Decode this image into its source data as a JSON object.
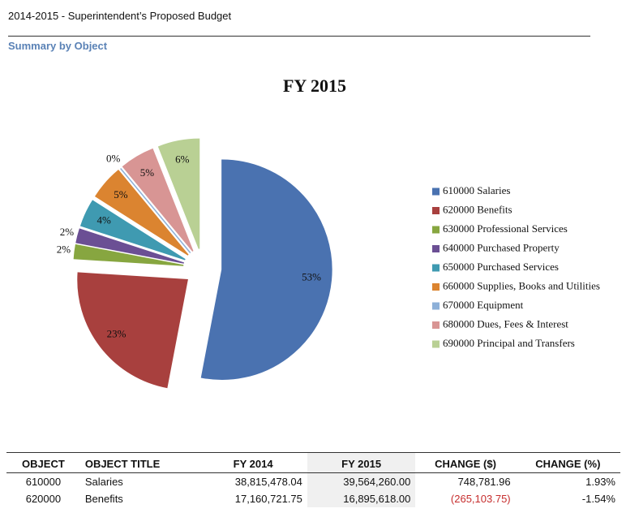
{
  "header": {
    "title": "2014-2015 - Superintendent’s Proposed Budget",
    "subtitle": "Summary by Object"
  },
  "chart_data": {
    "type": "pie",
    "title": "FY 2015",
    "categories": [
      "610000 Salaries",
      "620000 Benefits",
      "630000 Professional Services",
      "640000 Purchased Property",
      "650000 Purchased Services",
      "660000 Supplies, Books and Utilities",
      "670000 Equipment",
      "680000 Dues, Fees & Interest",
      "690000 Principal and Transfers"
    ],
    "values": [
      53,
      23,
      2,
      2,
      4,
      5,
      0,
      5,
      6
    ],
    "value_labels": [
      "53%",
      "23%",
      "2%",
      "2%",
      "4%",
      "5%",
      "0%",
      "5%",
      "6%"
    ],
    "colors": [
      "#4a72b0",
      "#a8403e",
      "#87a640",
      "#6b4f94",
      "#3f9ab1",
      "#db8430",
      "#8db0d8",
      "#d89594",
      "#b9d094"
    ],
    "legend": "right"
  },
  "table": {
    "headers": [
      "OBJECT",
      "OBJECT TITLE",
      "FY 2014",
      "FY 2015",
      "CHANGE ($)",
      "CHANGE (%)"
    ],
    "rows": [
      [
        "610000",
        "Salaries",
        "38,815,478.04",
        "39,564,260.00",
        "748,781.96",
        "1.93%"
      ],
      [
        "620000",
        "Benefits",
        "17,160,721.75",
        "16,895,618.00",
        "(265,103.75)",
        "-1.54%"
      ]
    ]
  }
}
